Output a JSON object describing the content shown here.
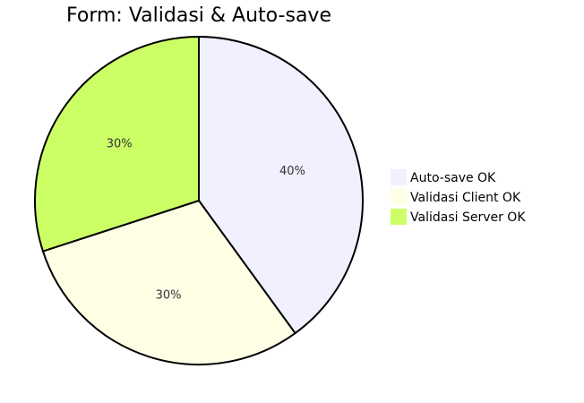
{
  "chart_data": {
    "type": "pie",
    "title": "Form: Validasi & Auto-save",
    "slices": [
      {
        "label": "Auto-save OK",
        "value": 40,
        "display": "40%",
        "color": "#f0f0ff"
      },
      {
        "label": "Validasi Client OK",
        "value": 30,
        "display": "30%",
        "color": "#ffffe6"
      },
      {
        "label": "Validasi Server OK",
        "value": 30,
        "display": "30%",
        "color": "#ccff66"
      }
    ],
    "legend_position": "right",
    "outline_color": "#000000"
  }
}
